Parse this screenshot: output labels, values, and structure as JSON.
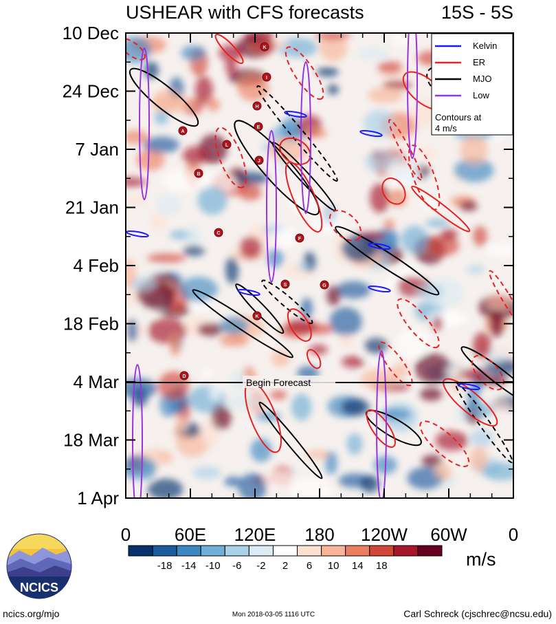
{
  "chart_data": {
    "type": "heatmap",
    "title": "USHEAR with CFS forecasts",
    "region": "15S - 5S",
    "y_ticks": [
      "10 Dec",
      "24 Dec",
      "7 Jan",
      "21 Jan",
      "4 Feb",
      "18 Feb",
      "4 Mar",
      "18 Mar",
      "1 Apr"
    ],
    "x_ticks": [
      "0",
      "60E",
      "120E",
      "180",
      "120W",
      "60W",
      "0"
    ],
    "x_range": [
      0,
      360
    ],
    "forecast_label": "Begin Forecast",
    "forecast_date": "4 Mar",
    "legend": {
      "entries": [
        {
          "name": "Kelvin",
          "color": "#1a1aff"
        },
        {
          "name": "ER",
          "color": "#e82020"
        },
        {
          "name": "MJO",
          "color": "#000000"
        },
        {
          "name": "Low",
          "color": "#9933dd"
        }
      ],
      "note_line1": "Contours at",
      "note_line2": "4 m/s"
    },
    "colorbar": {
      "labels": [
        "-18",
        "-14",
        "-10",
        "-6",
        "-2",
        "2",
        "6",
        "10",
        "14",
        "18"
      ],
      "colors": [
        "#08306b",
        "#1c5a9e",
        "#3d87c0",
        "#6faed6",
        "#a9d0e6",
        "#dcebf3",
        "#ffffff",
        "#fde0d2",
        "#f7b498",
        "#ec7f62",
        "#d2463a",
        "#a6172b",
        "#67001f"
      ],
      "unit": "m/s"
    },
    "tc_markers": [
      "K",
      "I",
      "H",
      "E",
      "A",
      "L",
      "J",
      "B",
      "C",
      "F",
      "G",
      "S",
      "K",
      "D"
    ]
  },
  "logo": {
    "text": "NCICS"
  },
  "footer": {
    "left": "ncics.org/mjo",
    "center": "Mon 2018-03-05 1116 UTC",
    "right": "Carl Schreck (cjschrec@ncsu.edu)"
  }
}
